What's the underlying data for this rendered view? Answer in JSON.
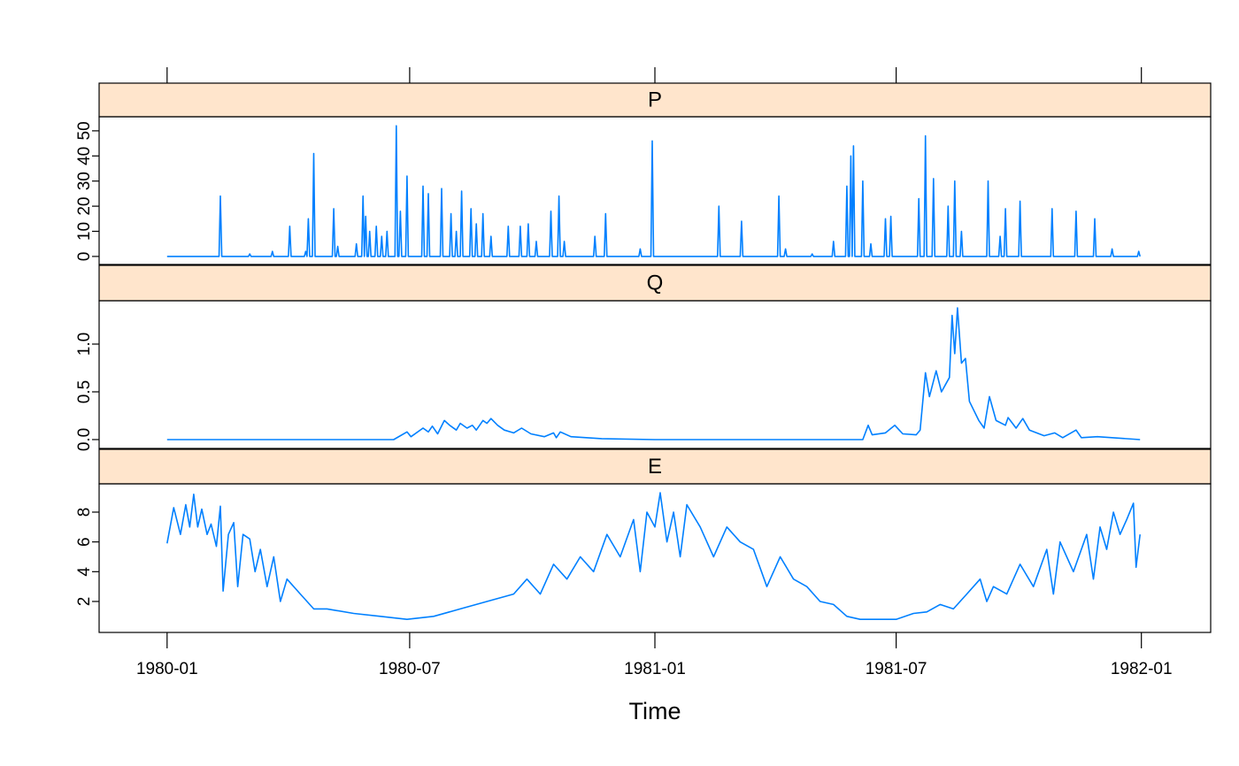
{
  "chart_data": [
    {
      "type": "line",
      "title": "P",
      "color": "#0080ff",
      "xlim": [
        -51,
        783
      ],
      "ylim": [
        -3.2,
        55.6
      ],
      "yticks": [
        0,
        10,
        20,
        30,
        40,
        50
      ],
      "x": [
        0,
        39,
        40,
        41,
        61,
        62,
        63,
        78,
        79,
        80,
        91,
        92,
        93,
        103,
        104,
        105,
        106,
        107,
        109,
        110,
        111,
        124,
        125,
        126,
        127,
        128,
        129,
        141,
        142,
        143,
        146,
        147,
        148,
        149,
        150,
        151,
        152,
        153,
        156,
        157,
        158,
        160,
        161,
        162,
        164,
        165,
        166,
        171,
        172,
        173,
        174,
        175,
        176,
        179,
        180,
        181,
        191,
        192,
        193,
        195,
        196,
        197,
        205,
        206,
        207,
        212,
        213,
        214,
        216,
        217,
        218,
        220,
        221,
        222,
        227,
        228,
        229,
        231,
        232,
        233,
        236,
        237,
        238,
        242,
        243,
        244,
        255,
        256,
        257,
        264,
        265,
        266,
        270,
        271,
        272,
        276,
        277,
        278,
        287,
        288,
        289,
        293,
        294,
        295,
        297,
        298,
        299,
        320,
        321,
        322,
        328,
        329,
        330,
        354,
        355,
        356,
        363,
        364,
        365,
        413,
        414,
        415,
        430,
        431,
        432,
        458,
        459,
        460,
        463,
        464,
        465,
        483,
        484,
        485,
        499,
        500,
        501,
        509,
        510,
        511,
        512,
        513,
        514,
        515,
        516,
        521,
        522,
        523,
        527,
        528,
        529,
        538,
        539,
        540,
        542,
        543,
        544,
        563,
        564,
        565,
        568,
        569,
        570,
        574,
        575,
        576,
        585,
        586,
        587,
        590,
        591,
        592,
        595,
        596,
        597,
        615,
        616,
        617,
        624,
        625,
        626,
        628,
        629,
        630,
        639,
        640,
        641,
        663,
        664,
        665,
        681,
        682,
        683,
        695,
        696,
        697,
        708,
        709,
        710,
        728,
        729,
        730
      ],
      "values": [
        0,
        0,
        24,
        0,
        0,
        1,
        0,
        0,
        2,
        0,
        0,
        12,
        0,
        0,
        2,
        0,
        15,
        0,
        0,
        41,
        0,
        0,
        19,
        0,
        0,
        4,
        0,
        0,
        5,
        0,
        0,
        24,
        0,
        16,
        0,
        0,
        10,
        0,
        0,
        12,
        0,
        0,
        8,
        0,
        0,
        10,
        0,
        0,
        52,
        0,
        0,
        18,
        0,
        0,
        32,
        0,
        0,
        28,
        0,
        0,
        25,
        0,
        0,
        27,
        0,
        0,
        17,
        0,
        0,
        10,
        0,
        0,
        26,
        0,
        0,
        19,
        0,
        0,
        13,
        0,
        0,
        17,
        0,
        0,
        8,
        0,
        0,
        12,
        0,
        0,
        12,
        0,
        0,
        13,
        0,
        0,
        6,
        0,
        0,
        18,
        0,
        0,
        24,
        0,
        0,
        6,
        0,
        0,
        8,
        0,
        0,
        17,
        0,
        0,
        3,
        0,
        0,
        46,
        0,
        0,
        20,
        0,
        0,
        14,
        0,
        0,
        24,
        0,
        0,
        3,
        0,
        0,
        1,
        0,
        0,
        6,
        0,
        0,
        28,
        0,
        0,
        40,
        0,
        44,
        0,
        0,
        30,
        0,
        0,
        5,
        0,
        0,
        15,
        0,
        0,
        16,
        0,
        0,
        23,
        0,
        0,
        48,
        0,
        0,
        31,
        0,
        0,
        20,
        0,
        0,
        30,
        0,
        0,
        10,
        0,
        0,
        30,
        0,
        0,
        8,
        0,
        0,
        19,
        0,
        0,
        22,
        0,
        0,
        19,
        0,
        0,
        18,
        0,
        0,
        15,
        0,
        0,
        3,
        0,
        0,
        2,
        0
      ]
    },
    {
      "type": "line",
      "title": "Q",
      "color": "#0080ff",
      "xlim": [
        -51,
        783
      ],
      "ylim": [
        -0.093,
        1.454
      ],
      "yticks": [
        {
          "value": 0,
          "label": "0.0"
        },
        0.5,
        {
          "value": 1,
          "label": "1.0"
        }
      ],
      "x": [
        0,
        170,
        180,
        183,
        192,
        196,
        199,
        203,
        208,
        212,
        217,
        220,
        225,
        229,
        232,
        237,
        240,
        243,
        248,
        253,
        260,
        266,
        273,
        283,
        290,
        292,
        295,
        303,
        326,
        366,
        522,
        526,
        529,
        539,
        546,
        552,
        562,
        565,
        569,
        572,
        577,
        581,
        585,
        587,
        589,
        591,
        593,
        596,
        599,
        602,
        609,
        613,
        617,
        622,
        629,
        631,
        637,
        642,
        647,
        658,
        666,
        672,
        682,
        686,
        698,
        730
      ],
      "values": [
        0,
        0,
        0.08,
        0.03,
        0.12,
        0.08,
        0.14,
        0.06,
        0.2,
        0.15,
        0.1,
        0.17,
        0.12,
        0.15,
        0.1,
        0.2,
        0.17,
        0.22,
        0.15,
        0.1,
        0.07,
        0.12,
        0.06,
        0.03,
        0.07,
        0.02,
        0.08,
        0.03,
        0.01,
        0,
        0,
        0.15,
        0.05,
        0.07,
        0.15,
        0.06,
        0.05,
        0.1,
        0.7,
        0.45,
        0.72,
        0.5,
        0.6,
        0.65,
        1.3,
        0.9,
        1.38,
        0.8,
        0.85,
        0.4,
        0.2,
        0.12,
        0.45,
        0.2,
        0.15,
        0.23,
        0.12,
        0.22,
        0.1,
        0.04,
        0.07,
        0.02,
        0.1,
        0.02,
        0.03,
        0
      ]
    },
    {
      "type": "line",
      "title": "E",
      "color": "#0080ff",
      "xlim": [
        -51,
        783
      ],
      "ylim": [
        -0.08,
        9.9
      ],
      "yticks": [
        2,
        4,
        6,
        8
      ],
      "xticks": [
        {
          "value": 0,
          "label": "1980-01"
        },
        {
          "value": 182,
          "label": "1980-07"
        },
        {
          "value": 366,
          "label": "1981-01"
        },
        {
          "value": 547,
          "label": "1981-07"
        },
        {
          "value": 731,
          "label": "1982-01"
        }
      ],
      "xlabel": "Time",
      "x": [
        0,
        5,
        10,
        14,
        17,
        20,
        23,
        26,
        30,
        33,
        37,
        40,
        42,
        46,
        50,
        53,
        57,
        62,
        66,
        70,
        75,
        80,
        85,
        90,
        100,
        110,
        120,
        140,
        160,
        180,
        200,
        220,
        240,
        260,
        270,
        280,
        290,
        300,
        310,
        320,
        330,
        340,
        350,
        355,
        360,
        366,
        370,
        375,
        380,
        385,
        390,
        400,
        410,
        420,
        430,
        440,
        450,
        460,
        470,
        480,
        490,
        500,
        510,
        520,
        530,
        547,
        560,
        570,
        580,
        590,
        600,
        610,
        615,
        620,
        630,
        640,
        650,
        660,
        665,
        670,
        680,
        690,
        695,
        700,
        705,
        710,
        715,
        720,
        725,
        727,
        730
      ],
      "values": [
        5.9,
        8.3,
        6.5,
        8.5,
        7,
        9.2,
        7,
        8.2,
        6.5,
        7.2,
        5.7,
        8.4,
        2.7,
        6.5,
        7.3,
        3,
        6.5,
        6.2,
        4,
        5.5,
        3,
        5,
        2,
        3.5,
        2.5,
        1.5,
        1.5,
        1.2,
        1,
        0.8,
        1,
        1.5,
        2,
        2.5,
        3.5,
        2.5,
        4.5,
        3.5,
        5,
        4,
        6.5,
        5,
        7.5,
        4,
        8,
        7,
        9.3,
        6,
        8,
        5,
        8.5,
        7,
        5,
        7,
        6,
        5.5,
        3,
        5,
        3.5,
        3,
        2,
        1.8,
        1,
        0.8,
        0.8,
        0.8,
        1.2,
        1.3,
        1.8,
        1.5,
        2.5,
        3.5,
        2,
        3,
        2.5,
        4.5,
        3,
        5.5,
        2.5,
        6,
        4,
        6.5,
        3.5,
        7,
        5.5,
        8,
        6.5,
        7.5,
        8.6,
        4.3,
        6.5
      ]
    }
  ]
}
